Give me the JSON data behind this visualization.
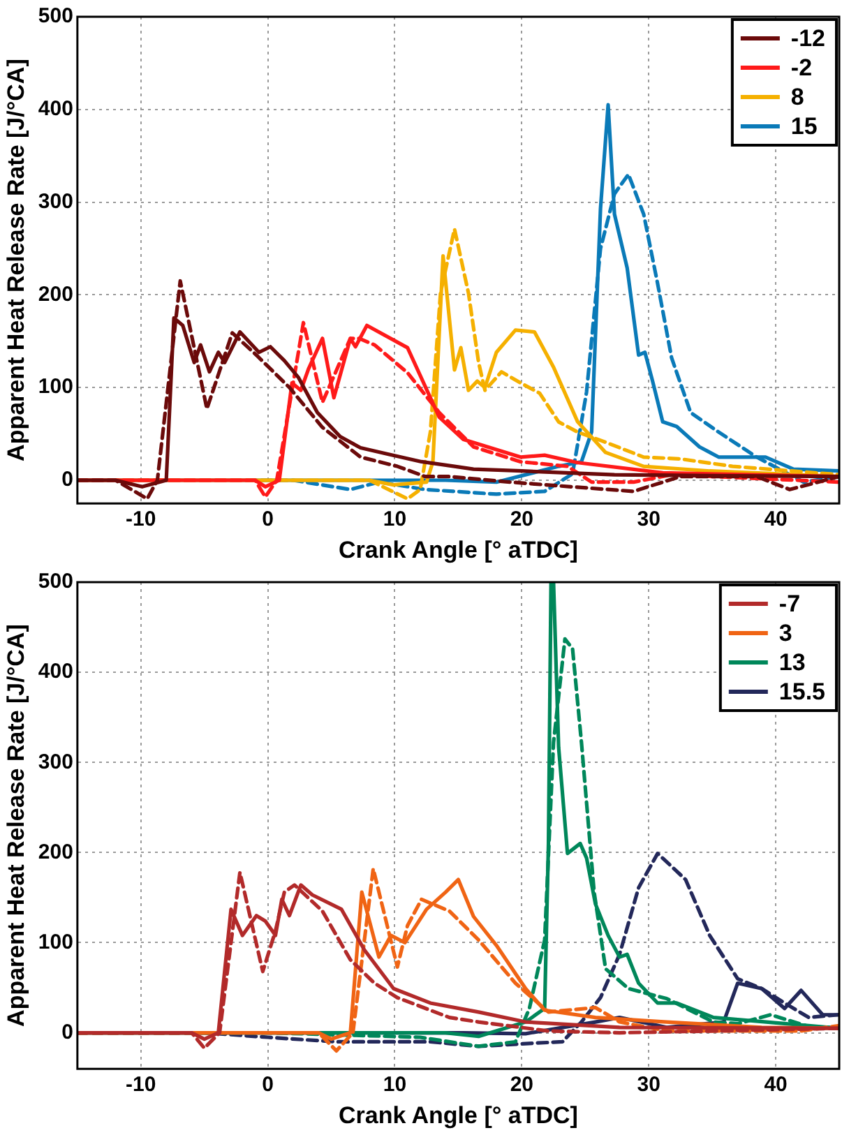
{
  "chart_data": [
    {
      "type": "line",
      "xlabel": "Crank Angle [° aTDC]",
      "ylabel": "Apparent Heat Release Rate [J/°CA]",
      "xlim": [
        -15,
        45
      ],
      "xticks": [
        -10,
        0,
        10,
        20,
        30,
        40
      ],
      "ylim": [
        -25,
        500
      ],
      "yticks": [
        0,
        100,
        200,
        300,
        400,
        500
      ],
      "grid": true,
      "legend": "top right",
      "marker": "none",
      "series": [
        {
          "name": "-12",
          "color": "#6b0a0a",
          "line_style": "solid",
          "x": [
            -15,
            -12,
            -9.9,
            -8,
            -7.4,
            -6.7,
            -5.8,
            -5.3,
            -4.6,
            -3.9,
            -3.4,
            -2.2,
            -0.7,
            0.2,
            1.3,
            2.4,
            3.9,
            5.7,
            7.3,
            9.5,
            12.1,
            14.7,
            16.2,
            20,
            27.3,
            35,
            45
          ],
          "values": [
            0,
            0,
            -7,
            0,
            175,
            167,
            127,
            146,
            117,
            138,
            127,
            160,
            138,
            144,
            129,
            111,
            73,
            47,
            35,
            28,
            20,
            15,
            12,
            10,
            6,
            5,
            4
          ]
        },
        {
          "color": "#6b0a0a",
          "line_style": "dashed",
          "x": [
            -15,
            -12,
            -9.5,
            -8.7,
            -6.9,
            -4.8,
            -2.8,
            -0.9,
            1.7,
            4.3,
            7.3,
            10.2,
            12.4,
            14.3,
            19.1,
            22.9,
            28.8,
            32.5,
            38.5,
            41.1,
            45
          ],
          "values": [
            0,
            0,
            -20,
            0,
            215,
            77,
            159,
            135,
            100,
            57,
            25,
            15,
            4,
            4,
            -2,
            -6,
            -12,
            4,
            4,
            -10,
            4
          ]
        },
        {
          "name": "-2",
          "color": "#ff1a1a",
          "line_style": "solid",
          "x": [
            -15,
            -1,
            -0.2,
            0.9,
            1.9,
            2.6,
            3.2,
            4.3,
            5.2,
            6.5,
            6.9,
            7.8,
            11,
            13.5,
            15.4,
            19.9,
            21.8,
            24.4,
            31.1,
            45
          ],
          "values": [
            0,
            0,
            -7,
            0,
            105,
            97,
            120,
            153,
            89,
            153,
            144,
            167,
            143,
            68,
            44,
            25,
            27,
            19,
            8,
            4
          ]
        },
        {
          "color": "#ff1a1a",
          "line_style": "dashed",
          "x": [
            -15,
            -1,
            -0.2,
            0.7,
            2.8,
            4.3,
            6.5,
            7.2,
            8.4,
            11,
            13.5,
            16.2,
            19.9,
            23.6,
            25.5,
            28.8,
            31.8,
            45
          ],
          "values": [
            0,
            0,
            -18,
            0,
            170,
            84,
            153,
            153,
            146,
            116,
            73,
            36,
            20,
            15,
            -2,
            -2,
            6,
            -2
          ]
        },
        {
          "name": "8",
          "color": "#f5b000",
          "line_style": "solid",
          "x": [
            -15,
            8,
            9.9,
            12.5,
            13,
            13.8,
            14.7,
            15.2,
            15.8,
            16.5,
            17.1,
            18,
            19.5,
            21,
            22.5,
            24.4,
            26.6,
            29.6,
            34.8,
            45
          ],
          "values": [
            0,
            0,
            -5,
            -2,
            20,
            242,
            119,
            143,
            97,
            107,
            100,
            138,
            162,
            160,
            122,
            63,
            30,
            15,
            10,
            4
          ]
        },
        {
          "color": "#f5b000",
          "line_style": "dashed",
          "x": [
            -15,
            8,
            11,
            12,
            12.8,
            13.6,
            14.7,
            15.8,
            16.6,
            17.1,
            18.4,
            19.9,
            21.4,
            22.9,
            24.4,
            26.6,
            29.6,
            32.5,
            36.6,
            45
          ],
          "values": [
            0,
            0,
            -20,
            -10,
            52,
            202,
            271,
            202,
            127,
            97,
            117,
            105,
            94,
            63,
            52,
            41,
            25,
            23,
            15,
            6
          ]
        },
        {
          "name": "15",
          "color": "#0a7ab8",
          "line_style": "solid",
          "x": [
            -15,
            14,
            18,
            22.9,
            24.7,
            25.5,
            26.2,
            26.8,
            27.3,
            28.3,
            29.2,
            29.7,
            30.3,
            31.1,
            32.2,
            34,
            35.5,
            39.2,
            41.4,
            45
          ],
          "values": [
            0,
            0,
            -2,
            15,
            20,
            52,
            293,
            405,
            287,
            229,
            135,
            138,
            107,
            63,
            58,
            36,
            25,
            25,
            12,
            10
          ]
        },
        {
          "color": "#0a7ab8",
          "line_style": "dashed",
          "x": [
            -15,
            2,
            6.5,
            8.75,
            12.4,
            18,
            21.8,
            24,
            25.1,
            26.2,
            27.3,
            28.4,
            29.6,
            30.7,
            31.8,
            33.3,
            35.5,
            38.5,
            42.2,
            45
          ],
          "values": [
            0,
            0,
            -10,
            -2,
            -10,
            -15,
            -12,
            7,
            95,
            250,
            309,
            330,
            287,
            212,
            132,
            73,
            52,
            25,
            -2,
            4
          ]
        }
      ]
    },
    {
      "type": "line",
      "xlabel": "Crank Angle [° aTDC]",
      "ylabel": "Apparent Heat Release Rate [J/°CA]",
      "xlim": [
        -15,
        45
      ],
      "xticks": [
        -10,
        0,
        10,
        20,
        30,
        40
      ],
      "ylim": [
        -40,
        500
      ],
      "yticks": [
        0,
        100,
        200,
        300,
        400,
        500
      ],
      "grid": true,
      "legend": "top right",
      "marker": "none",
      "series": [
        {
          "name": "-7",
          "color": "#b22a2a",
          "line_style": "solid",
          "x": [
            -15,
            -6,
            -5,
            -3.9,
            -2.9,
            -2,
            -0.9,
            -0.2,
            0.6,
            1.1,
            1.7,
            2.6,
            3.5,
            5.8,
            7.6,
            9.9,
            12.8,
            16.6,
            20.3,
            27.7,
            45
          ],
          "values": [
            0,
            0,
            -7,
            0,
            137,
            108,
            130,
            124,
            108,
            148,
            130,
            164,
            153,
            137,
            92,
            49,
            33,
            23,
            12,
            6,
            5
          ]
        },
        {
          "color": "#b22a2a",
          "line_style": "dashed",
          "x": [
            -15,
            -6,
            -5,
            -3.8,
            -2.2,
            -0.4,
            0.6,
            1.3,
            2.1,
            4.3,
            6.5,
            8.4,
            10.2,
            14.3,
            16.6,
            22.1,
            27.7,
            35.1,
            45
          ],
          "values": [
            0,
            0,
            -17,
            0,
            178,
            68,
            113,
            156,
            164,
            135,
            81,
            55,
            39,
            17,
            12,
            2,
            0,
            2,
            5
          ]
        },
        {
          "name": "3",
          "color": "#f06414",
          "line_style": "solid",
          "x": [
            -15,
            4,
            5,
            6.5,
            7.4,
            8.75,
            9.7,
            10.8,
            12.5,
            14,
            15,
            16.2,
            18,
            20.3,
            21.8,
            25.8,
            31.4,
            38.9,
            45
          ],
          "values": [
            0,
            0,
            -7,
            0,
            156,
            84,
            108,
            100,
            137,
            156,
            170,
            129,
            97,
            49,
            25,
            17,
            12,
            6,
            5
          ]
        },
        {
          "color": "#f06414",
          "line_style": "dashed",
          "x": [
            -15,
            4,
            5.4,
            6.7,
            8.3,
            10.2,
            11,
            12.1,
            14.3,
            16.6,
            19.5,
            22.1,
            25.8,
            27.7,
            31.4,
            42,
            45
          ],
          "values": [
            0,
            0,
            -20,
            0,
            182,
            73,
            119,
            148,
            135,
            103,
            55,
            23,
            28,
            12,
            2,
            2,
            8
          ]
        },
        {
          "name": "13",
          "color": "#00875a",
          "line_style": "solid",
          "x": [
            -15,
            14,
            16.6,
            20.3,
            21.8,
            22.1,
            22.3,
            22.5,
            22.9,
            23.6,
            24.6,
            25.1,
            25.8,
            26.8,
            27.7,
            28.3,
            29.2,
            30.7,
            32.2,
            35.1,
            45
          ],
          "values": [
            0,
            0,
            -4,
            12,
            27,
            210,
            500,
            500,
            317,
            199,
            210,
            194,
            143,
            108,
            84,
            87,
            55,
            33,
            33,
            17,
            5
          ]
        },
        {
          "color": "#00875a",
          "line_style": "dashed",
          "x": [
            -15,
            0,
            12,
            16.6,
            19.5,
            20.6,
            21.8,
            22.5,
            23.4,
            24,
            24.7,
            25.7,
            26.6,
            28.4,
            31.4,
            35.1,
            37,
            39.6,
            42.8,
            45
          ],
          "values": [
            0,
            0,
            -5,
            -15,
            -10,
            27,
            103,
            322,
            437,
            426,
            322,
            156,
            71,
            49,
            38,
            12,
            10,
            20,
            6,
            6
          ]
        },
        {
          "name": "15.5",
          "color": "#23285a",
          "line_style": "solid",
          "x": [
            -15,
            15.4,
            20.3,
            25.8,
            27.7,
            31.4,
            35.9,
            37,
            38.9,
            40.7,
            42,
            43.7,
            45
          ],
          "values": [
            0,
            0,
            -1,
            12,
            17,
            6,
            12,
            55,
            49,
            27,
            47,
            20,
            20
          ]
        },
        {
          "color": "#23285a",
          "line_style": "dashed",
          "x": [
            -15,
            -5,
            0,
            5.4,
            12.8,
            16.6,
            20.3,
            23.2,
            24.7,
            26.2,
            27.7,
            29.2,
            30.7,
            32.9,
            34.8,
            37,
            38.9,
            40.7,
            42.6,
            45
          ],
          "values": [
            0,
            0,
            -5,
            -10,
            -10,
            -15,
            -12,
            -10,
            12,
            39,
            87,
            161,
            199,
            170,
            108,
            60,
            49,
            33,
            17,
            20
          ]
        }
      ]
    }
  ]
}
